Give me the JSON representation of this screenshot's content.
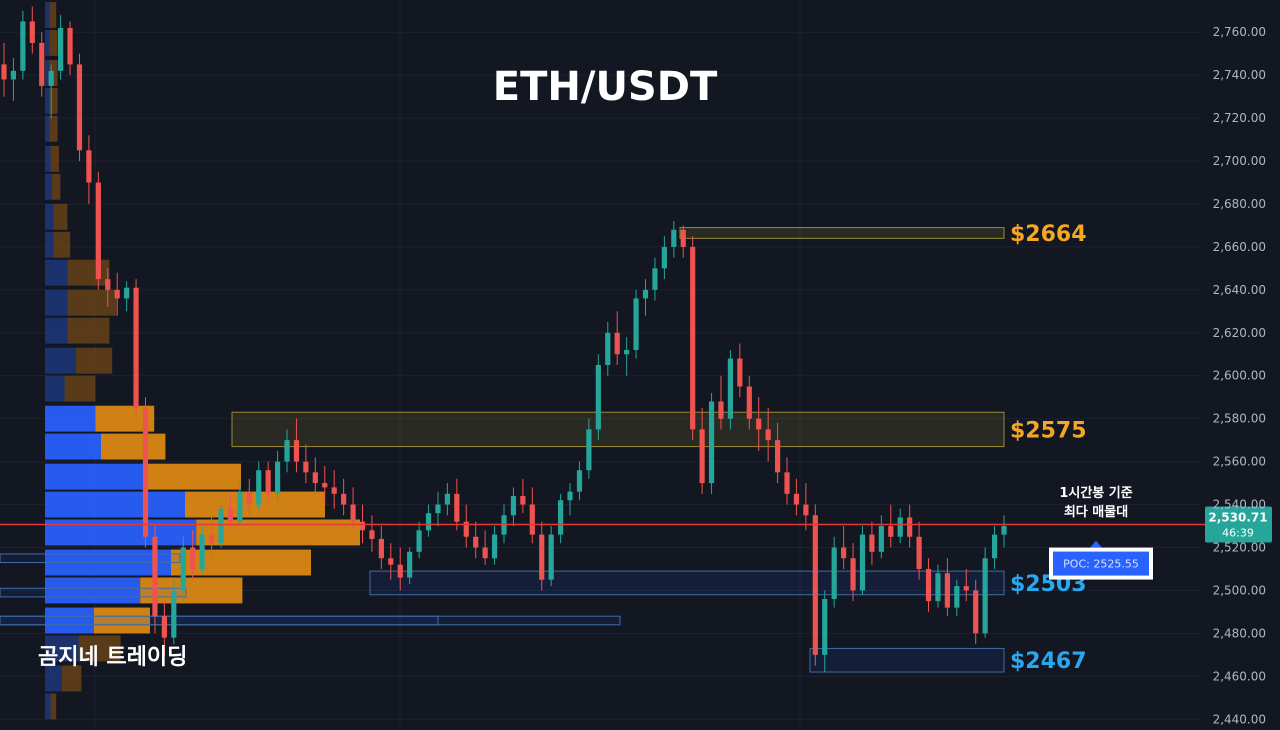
{
  "chart_data": {
    "type": "candlestick",
    "title": "ETH/USDT",
    "watermark": "곰지네 트레이딩",
    "ylim": [
      2435,
      2775
    ],
    "y_ticks": [
      2440,
      2460,
      2480,
      2500,
      2520,
      2540,
      2560,
      2580,
      2600,
      2620,
      2640,
      2660,
      2680,
      2700,
      2720,
      2740,
      2760
    ],
    "y_tick_labels": [
      "2,440.00",
      "2,460.00",
      "2,480.00",
      "2,500.00",
      "2,520.00",
      "2,540.00",
      "2,560.00",
      "2,580.00",
      "2,600.00",
      "2,620.00",
      "2,640.00",
      "2,660.00",
      "2,680.00",
      "2,700.00",
      "2,720.00",
      "2,740.00",
      "2,760.00"
    ],
    "current_price": 2530.71,
    "current_price_label": "2,530.71",
    "countdown": "46:39",
    "poc_price": 2525.55,
    "poc_label": "POC: 2525.55",
    "poc_note": [
      "1시간봉 기준",
      "최다 매물대"
    ],
    "levels": [
      {
        "label": "$2664",
        "top": 2669,
        "bottom": 2664,
        "color": "#f5a623"
      },
      {
        "label": "$2575",
        "top": 2583,
        "bottom": 2567,
        "color": "#f5a623"
      },
      {
        "label": "$2503",
        "top": 2509,
        "bottom": 2498,
        "color": "#29a8ef"
      },
      {
        "label": "$2467",
        "top": 2473,
        "bottom": 2462,
        "color": "#29a8ef"
      }
    ],
    "volume_profile": [
      {
        "price": 2768,
        "up": 3,
        "down": 5
      },
      {
        "price": 2755,
        "up": 3,
        "down": 6
      },
      {
        "price": 2741,
        "up": 3,
        "down": 6
      },
      {
        "price": 2728,
        "up": 3,
        "down": 6
      },
      {
        "price": 2715,
        "up": 3,
        "down": 6
      },
      {
        "price": 2701,
        "up": 4,
        "down": 6
      },
      {
        "price": 2688,
        "up": 5,
        "down": 6
      },
      {
        "price": 2674,
        "up": 6,
        "down": 10
      },
      {
        "price": 2661,
        "up": 6,
        "down": 12
      },
      {
        "price": 2648,
        "up": 16,
        "down": 30
      },
      {
        "price": 2634,
        "up": 16,
        "down": 35
      },
      {
        "price": 2621,
        "up": 16,
        "down": 30
      },
      {
        "price": 2607,
        "up": 22,
        "down": 26
      },
      {
        "price": 2594,
        "up": 14,
        "down": 22
      },
      {
        "price": 2580,
        "up": 36,
        "down": 42
      },
      {
        "price": 2567,
        "up": 40,
        "down": 46
      },
      {
        "price": 2553,
        "up": 70,
        "down": 70
      },
      {
        "price": 2540,
        "up": 100,
        "down": 100
      },
      {
        "price": 2527,
        "up": 108,
        "down": 117
      },
      {
        "price": 2513,
        "up": 90,
        "down": 100
      },
      {
        "price": 2500,
        "up": 68,
        "down": 73
      },
      {
        "price": 2486,
        "up": 35,
        "down": 40
      },
      {
        "price": 2473,
        "up": 24,
        "down": 30
      },
      {
        "price": 2459,
        "up": 12,
        "down": 14
      },
      {
        "price": 2446,
        "up": 4,
        "down": 4
      }
    ],
    "candles": [
      [
        2745,
        2755,
        2730,
        2738
      ],
      [
        2738,
        2748,
        2728,
        2742
      ],
      [
        2742,
        2770,
        2738,
        2765
      ],
      [
        2765,
        2772,
        2750,
        2755
      ],
      [
        2755,
        2760,
        2730,
        2735
      ],
      [
        2735,
        2745,
        2720,
        2742
      ],
      [
        2742,
        2768,
        2738,
        2762
      ],
      [
        2762,
        2765,
        2740,
        2745
      ],
      [
        2745,
        2750,
        2700,
        2705
      ],
      [
        2705,
        2712,
        2680,
        2690
      ],
      [
        2690,
        2695,
        2640,
        2645
      ],
      [
        2645,
        2650,
        2632,
        2640
      ],
      [
        2640,
        2648,
        2628,
        2636
      ],
      [
        2636,
        2644,
        2630,
        2641
      ],
      [
        2641,
        2645,
        2580,
        2585
      ],
      [
        2585,
        2590,
        2520,
        2525
      ],
      [
        2525,
        2530,
        2480,
        2488
      ],
      [
        2488,
        2495,
        2470,
        2478
      ],
      [
        2478,
        2505,
        2475,
        2500
      ],
      [
        2500,
        2525,
        2495,
        2520
      ],
      [
        2520,
        2528,
        2505,
        2510
      ],
      [
        2510,
        2530,
        2508,
        2526
      ],
      [
        2526,
        2535,
        2515,
        2522
      ],
      [
        2522,
        2540,
        2520,
        2538
      ],
      [
        2538,
        2545,
        2528,
        2532
      ],
      [
        2532,
        2550,
        2530,
        2546
      ],
      [
        2546,
        2552,
        2535,
        2540
      ],
      [
        2540,
        2560,
        2538,
        2556
      ],
      [
        2556,
        2560,
        2540,
        2545
      ],
      [
        2545,
        2565,
        2542,
        2560
      ],
      [
        2560,
        2575,
        2555,
        2570
      ],
      [
        2570,
        2580,
        2555,
        2560
      ],
      [
        2560,
        2568,
        2550,
        2555
      ],
      [
        2555,
        2562,
        2545,
        2550
      ],
      [
        2550,
        2558,
        2540,
        2548
      ],
      [
        2548,
        2556,
        2538,
        2545
      ],
      [
        2545,
        2552,
        2535,
        2540
      ],
      [
        2540,
        2548,
        2528,
        2532
      ],
      [
        2532,
        2540,
        2522,
        2528
      ],
      [
        2528,
        2535,
        2518,
        2524
      ],
      [
        2524,
        2530,
        2510,
        2515
      ],
      [
        2515,
        2522,
        2505,
        2512
      ],
      [
        2512,
        2520,
        2500,
        2506
      ],
      [
        2506,
        2520,
        2503,
        2518
      ],
      [
        2518,
        2532,
        2515,
        2528
      ],
      [
        2528,
        2540,
        2525,
        2536
      ],
      [
        2536,
        2546,
        2530,
        2540
      ],
      [
        2540,
        2550,
        2535,
        2545
      ],
      [
        2545,
        2552,
        2528,
        2532
      ],
      [
        2532,
        2540,
        2520,
        2525
      ],
      [
        2525,
        2532,
        2515,
        2520
      ],
      [
        2520,
        2528,
        2512,
        2515
      ],
      [
        2515,
        2530,
        2512,
        2526
      ],
      [
        2526,
        2540,
        2522,
        2535
      ],
      [
        2535,
        2548,
        2530,
        2544
      ],
      [
        2544,
        2552,
        2536,
        2540
      ],
      [
        2540,
        2548,
        2522,
        2526
      ],
      [
        2526,
        2532,
        2500,
        2505
      ],
      [
        2505,
        2530,
        2502,
        2526
      ],
      [
        2526,
        2545,
        2522,
        2542
      ],
      [
        2542,
        2550,
        2535,
        2546
      ],
      [
        2546,
        2560,
        2542,
        2556
      ],
      [
        2556,
        2580,
        2552,
        2575
      ],
      [
        2575,
        2610,
        2570,
        2605
      ],
      [
        2605,
        2625,
        2600,
        2620
      ],
      [
        2620,
        2630,
        2605,
        2610
      ],
      [
        2610,
        2618,
        2600,
        2612
      ],
      [
        2612,
        2640,
        2608,
        2636
      ],
      [
        2636,
        2645,
        2628,
        2640
      ],
      [
        2640,
        2655,
        2635,
        2650
      ],
      [
        2650,
        2665,
        2645,
        2660
      ],
      [
        2660,
        2672,
        2655,
        2668
      ],
      [
        2668,
        2670,
        2655,
        2660
      ],
      [
        2660,
        2665,
        2570,
        2575
      ],
      [
        2575,
        2585,
        2545,
        2550
      ],
      [
        2550,
        2592,
        2545,
        2588
      ],
      [
        2588,
        2600,
        2575,
        2580
      ],
      [
        2580,
        2612,
        2575,
        2608
      ],
      [
        2608,
        2615,
        2590,
        2595
      ],
      [
        2595,
        2600,
        2575,
        2580
      ],
      [
        2580,
        2590,
        2565,
        2575
      ],
      [
        2575,
        2585,
        2560,
        2570
      ],
      [
        2570,
        2578,
        2550,
        2555
      ],
      [
        2555,
        2562,
        2540,
        2545
      ],
      [
        2545,
        2552,
        2535,
        2540
      ],
      [
        2540,
        2550,
        2528,
        2535
      ],
      [
        2535,
        2540,
        2465,
        2470
      ],
      [
        2470,
        2500,
        2462,
        2496
      ],
      [
        2496,
        2525,
        2492,
        2520
      ],
      [
        2520,
        2530,
        2510,
        2515
      ],
      [
        2515,
        2522,
        2495,
        2500
      ],
      [
        2500,
        2530,
        2498,
        2526
      ],
      [
        2526,
        2532,
        2512,
        2518
      ],
      [
        2518,
        2535,
        2515,
        2530
      ],
      [
        2530,
        2540,
        2520,
        2525
      ],
      [
        2525,
        2538,
        2522,
        2534
      ],
      [
        2534,
        2540,
        2520,
        2525
      ],
      [
        2525,
        2532,
        2505,
        2510
      ],
      [
        2510,
        2515,
        2490,
        2495
      ],
      [
        2495,
        2512,
        2492,
        2508
      ],
      [
        2508,
        2515,
        2488,
        2492
      ],
      [
        2492,
        2505,
        2488,
        2502
      ],
      [
        2502,
        2510,
        2495,
        2500
      ],
      [
        2500,
        2505,
        2475,
        2480
      ],
      [
        2480,
        2520,
        2478,
        2515
      ],
      [
        2515,
        2530,
        2510,
        2526
      ],
      [
        2526,
        2535,
        2520,
        2530
      ]
    ]
  }
}
